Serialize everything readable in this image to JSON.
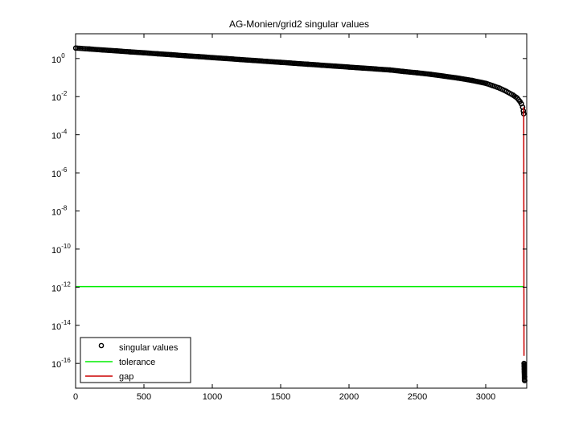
{
  "chart_data": {
    "type": "scatter",
    "title": "AG-Monien/grid2 singular values",
    "xlabel": "",
    "ylabel": "",
    "xlim": [
      0,
      3300
    ],
    "ylim_log10": [
      -17.3,
      1.3
    ],
    "yscale": "log",
    "grid": false,
    "legend_position": "bottom-left",
    "x_ticks": [
      {
        "value": 0,
        "label": "0"
      },
      {
        "value": 500,
        "label": "500"
      },
      {
        "value": 1000,
        "label": "1000"
      },
      {
        "value": 1500,
        "label": "1500"
      },
      {
        "value": 2000,
        "label": "2000"
      },
      {
        "value": 2500,
        "label": "2500"
      },
      {
        "value": 3000,
        "label": "3000"
      }
    ],
    "y_ticks": [
      {
        "exp": 0,
        "base": "10",
        "sup": "0"
      },
      {
        "exp": -2,
        "base": "10",
        "sup": "-2"
      },
      {
        "exp": -4,
        "base": "10",
        "sup": "-4"
      },
      {
        "exp": -6,
        "base": "10",
        "sup": "-6"
      },
      {
        "exp": -8,
        "base": "10",
        "sup": "-8"
      },
      {
        "exp": -10,
        "base": "10",
        "sup": "-10"
      },
      {
        "exp": -12,
        "base": "10",
        "sup": "-12"
      },
      {
        "exp": -14,
        "base": "10",
        "sup": "-14"
      },
      {
        "exp": -16,
        "base": "10",
        "sup": "-16"
      }
    ],
    "series": [
      {
        "name": "singular values",
        "kind": "markers",
        "color": "#000000",
        "points_log10": [
          [
            1,
            0.55
          ],
          [
            100,
            0.5
          ],
          [
            200,
            0.45
          ],
          [
            300,
            0.4
          ],
          [
            400,
            0.35
          ],
          [
            500,
            0.3
          ],
          [
            600,
            0.25
          ],
          [
            700,
            0.2
          ],
          [
            800,
            0.15
          ],
          [
            900,
            0.1
          ],
          [
            1000,
            0.05
          ],
          [
            1100,
            0.0
          ],
          [
            1200,
            -0.05
          ],
          [
            1300,
            -0.1
          ],
          [
            1400,
            -0.15
          ],
          [
            1500,
            -0.2
          ],
          [
            1600,
            -0.25
          ],
          [
            1700,
            -0.3
          ],
          [
            1800,
            -0.35
          ],
          [
            1900,
            -0.4
          ],
          [
            2000,
            -0.45
          ],
          [
            2100,
            -0.5
          ],
          [
            2200,
            -0.55
          ],
          [
            2300,
            -0.6
          ],
          [
            2400,
            -0.68
          ],
          [
            2500,
            -0.75
          ],
          [
            2600,
            -0.83
          ],
          [
            2700,
            -0.93
          ],
          [
            2800,
            -1.03
          ],
          [
            2900,
            -1.15
          ],
          [
            3000,
            -1.3
          ],
          [
            3050,
            -1.42
          ],
          [
            3100,
            -1.55
          ],
          [
            3150,
            -1.72
          ],
          [
            3200,
            -1.92
          ],
          [
            3230,
            -2.07
          ],
          [
            3250,
            -2.25
          ],
          [
            3260,
            -2.37
          ],
          [
            3270,
            -2.55
          ],
          [
            3275,
            -2.75
          ],
          [
            3278,
            -2.9
          ],
          [
            3280,
            -16.0
          ],
          [
            3281,
            -16.15
          ],
          [
            3282,
            -16.3
          ],
          [
            3283,
            -16.45
          ],
          [
            3285,
            -16.7
          ],
          [
            3286,
            -16.9
          ]
        ]
      },
      {
        "name": "tolerance",
        "kind": "line",
        "color": "#00ee00",
        "points_log10": [
          [
            0,
            -11.97
          ],
          [
            3280,
            -11.97
          ]
        ]
      },
      {
        "name": "gap",
        "kind": "line",
        "color": "#cc0000",
        "points_log10": [
          [
            3278,
            -2.55
          ],
          [
            3280,
            -15.6
          ]
        ]
      }
    ]
  }
}
